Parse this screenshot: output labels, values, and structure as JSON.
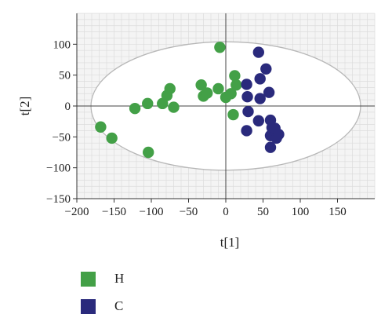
{
  "chart_data": {
    "type": "scatter",
    "title": "",
    "xlabel": "t[1]",
    "ylabel": "t[2]",
    "xlim": [
      -200,
      200
    ],
    "ylim": [
      -150,
      150
    ],
    "xticks": [
      -200,
      -150,
      -100,
      -50,
      0,
      50,
      100,
      150
    ],
    "yticks": [
      -150,
      -100,
      -50,
      0,
      50,
      100
    ],
    "grid": true,
    "legend": "bottom-left",
    "ellipse": {
      "center": [
        0,
        0
      ],
      "radii": [
        181,
        104
      ]
    },
    "series": [
      {
        "name": "H",
        "color": "#43a047",
        "points": [
          [
            -168,
            -34
          ],
          [
            -153,
            -52
          ],
          [
            -122,
            -4
          ],
          [
            -105,
            4
          ],
          [
            -104,
            -75
          ],
          [
            -85,
            4
          ],
          [
            -79,
            17
          ],
          [
            -75,
            28
          ],
          [
            -70,
            -2
          ],
          [
            -33,
            34
          ],
          [
            -30,
            16
          ],
          [
            -25,
            21
          ],
          [
            -10,
            28
          ],
          [
            -8,
            95
          ],
          [
            0,
            14
          ],
          [
            7,
            20
          ],
          [
            10,
            -14
          ],
          [
            12,
            49
          ],
          [
            14,
            34
          ]
        ]
      },
      {
        "name": "C",
        "color": "#2a2a7c",
        "points": [
          [
            28,
            35
          ],
          [
            29,
            15
          ],
          [
            30,
            -9
          ],
          [
            28,
            -40
          ],
          [
            44,
            87
          ],
          [
            46,
            44
          ],
          [
            46,
            12
          ],
          [
            44,
            -24
          ],
          [
            54,
            60
          ],
          [
            58,
            22
          ],
          [
            60,
            -23
          ],
          [
            62,
            -35
          ],
          [
            60,
            -48
          ],
          [
            60,
            -67
          ],
          [
            65,
            -40
          ],
          [
            68,
            -52
          ],
          [
            71,
            -46
          ],
          [
            66,
            -36
          ]
        ]
      }
    ]
  }
}
